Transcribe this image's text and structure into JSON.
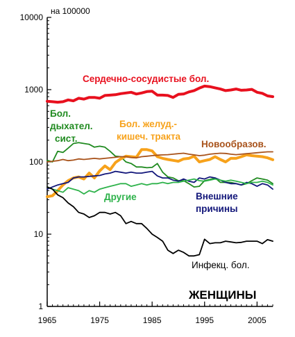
{
  "chart_data": {
    "type": "line",
    "title": "ЖЕНЩИНЫ",
    "ylabel": "на 100000",
    "xlabel": "",
    "y_scale": "log",
    "ylim": [
      1,
      10000
    ],
    "xlim": [
      1965,
      2008
    ],
    "x_ticks": [
      1965,
      1975,
      1985,
      1995,
      2005
    ],
    "y_ticks": [
      1,
      10,
      100,
      1000,
      10000
    ],
    "grid": false,
    "series": [
      {
        "name": "Сердечно-сосудистые бол.",
        "color": "#e8101e",
        "width": 4,
        "x": [
          1965,
          1966,
          1967,
          1968,
          1969,
          1970,
          1971,
          1972,
          1973,
          1974,
          1975,
          1976,
          1977,
          1978,
          1979,
          1980,
          1981,
          1982,
          1983,
          1984,
          1985,
          1986,
          1987,
          1988,
          1989,
          1990,
          1991,
          1992,
          1993,
          1994,
          1995,
          1996,
          1997,
          1998,
          1999,
          2000,
          2001,
          2002,
          2003,
          2004,
          2005,
          2006,
          2007,
          2008
        ],
        "values": [
          690,
          680,
          670,
          680,
          720,
          700,
          760,
          740,
          780,
          780,
          760,
          830,
          840,
          850,
          880,
          900,
          920,
          870,
          900,
          940,
          950,
          840,
          840,
          830,
          780,
          860,
          870,
          930,
          970,
          1050,
          1120,
          1100,
          1060,
          1020,
          970,
          990,
          1020,
          980,
          990,
          1010,
          920,
          890,
          820,
          800
        ]
      },
      {
        "name": "Бол. дыхател. сист.",
        "color": "#1f8a1f",
        "width": 1.8,
        "x": [
          1965,
          1966,
          1967,
          1968,
          1969,
          1970,
          1971,
          1972,
          1973,
          1974,
          1975,
          1976,
          1977,
          1978,
          1979,
          1980,
          1981,
          1982,
          1983,
          1984,
          1985,
          1986,
          1987,
          1988,
          1989,
          1990,
          1991,
          1992,
          1993,
          1994,
          1995,
          1996,
          1997,
          1998,
          1999,
          2000,
          2001,
          2002,
          2003,
          2004,
          2005,
          2006,
          2007,
          2008
        ],
        "values": [
          105,
          100,
          140,
          135,
          155,
          180,
          185,
          180,
          175,
          160,
          165,
          160,
          140,
          120,
          118,
          100,
          95,
          85,
          85,
          83,
          84,
          95,
          72,
          62,
          60,
          55,
          55,
          50,
          45,
          46,
          55,
          57,
          60,
          52,
          52,
          52,
          50,
          48,
          50,
          55,
          60,
          58,
          56,
          50
        ]
      },
      {
        "name": "Бол. желуд.-кишеч. тракта",
        "color": "#f7a21b",
        "width": 4,
        "x": [
          1965,
          1966,
          1967,
          1968,
          1969,
          1970,
          1971,
          1972,
          1973,
          1974,
          1975,
          1976,
          1977,
          1978,
          1979,
          1980,
          1981,
          1982,
          1983,
          1984,
          1985,
          1986,
          1987,
          1988,
          1989,
          1990,
          1991,
          1992,
          1993,
          1994,
          1995,
          1996,
          1997,
          1998,
          1999,
          2000,
          2001,
          2002,
          2003,
          2004,
          2005,
          2006,
          2007,
          2008
        ],
        "values": [
          33,
          34,
          40,
          48,
          55,
          60,
          62,
          58,
          70,
          60,
          75,
          88,
          78,
          98,
          110,
          120,
          118,
          116,
          148,
          148,
          142,
          118,
          112,
          108,
          105,
          102,
          110,
          112,
          120,
          100,
          104,
          108,
          118,
          108,
          100,
          112,
          112,
          118,
          125,
          122,
          120,
          118,
          114,
          107
        ]
      },
      {
        "name": "Новообразов.",
        "color": "#a8521a",
        "width": 1.8,
        "x": [
          1965,
          1966,
          1967,
          1968,
          1969,
          1970,
          1971,
          1972,
          1973,
          1974,
          1975,
          1976,
          1977,
          1978,
          1979,
          1980,
          1981,
          1982,
          1983,
          1984,
          1985,
          1986,
          1987,
          1988,
          1989,
          1990,
          1991,
          1992,
          1993,
          1994,
          1995,
          1996,
          1997,
          1998,
          1999,
          2000,
          2001,
          2002,
          2003,
          2004,
          2005,
          2006,
          2007,
          2008
        ],
        "values": [
          100,
          102,
          104,
          108,
          104,
          106,
          110,
          108,
          110,
          112,
          110,
          112,
          114,
          116,
          118,
          118,
          115,
          114,
          118,
          120,
          122,
          124,
          125,
          126,
          128,
          130,
          132,
          128,
          125,
          122,
          124,
          128,
          130,
          132,
          131,
          128,
          126,
          128,
          130,
          132,
          134,
          136,
          138,
          138
        ]
      },
      {
        "name": "Внешние причины",
        "color": "#12167a",
        "width": 1.8,
        "x": [
          1965,
          1966,
          1967,
          1968,
          1969,
          1970,
          1971,
          1972,
          1973,
          1974,
          1975,
          1976,
          1977,
          1978,
          1979,
          1980,
          1981,
          1982,
          1983,
          1984,
          1985,
          1986,
          1987,
          1988,
          1989,
          1990,
          1991,
          1992,
          1993,
          1994,
          1995,
          1996,
          1997,
          1998,
          1999,
          2000,
          2001,
          2002,
          2003,
          2004,
          2005,
          2006,
          2007,
          2008
        ],
        "values": [
          42,
          45,
          48,
          50,
          52,
          60,
          62,
          62,
          63,
          64,
          65,
          68,
          70,
          74,
          72,
          70,
          72,
          70,
          70,
          72,
          74,
          64,
          60,
          60,
          56,
          54,
          58,
          54,
          52,
          60,
          58,
          62,
          60,
          56,
          52,
          50,
          50,
          48,
          52,
          50,
          46,
          50,
          48,
          42
        ]
      },
      {
        "name": "Другие",
        "color": "#2db24a",
        "width": 1.8,
        "x": [
          1965,
          1966,
          1967,
          1968,
          1969,
          1970,
          1971,
          1972,
          1973,
          1974,
          1975,
          1976,
          1977,
          1978,
          1979,
          1980,
          1981,
          1982,
          1983,
          1984,
          1985,
          1986,
          1987,
          1988,
          1989,
          1990,
          1991,
          1992,
          1993,
          1994,
          1995,
          1996,
          1997,
          1998,
          1999,
          2000,
          2001,
          2002,
          2003,
          2004,
          2005,
          2006,
          2007,
          2008
        ],
        "values": [
          45,
          42,
          40,
          38,
          44,
          42,
          40,
          36,
          40,
          38,
          42,
          44,
          46,
          48,
          50,
          50,
          46,
          48,
          50,
          48,
          50,
          50,
          52,
          50,
          52,
          52,
          54,
          56,
          58,
          55,
          54,
          56,
          58,
          56,
          54,
          56,
          54,
          52,
          50,
          52,
          52,
          54,
          52,
          48
        ]
      },
      {
        "name": "Инфекц. бол.",
        "color": "#000000",
        "width": 1.8,
        "x": [
          1965,
          1966,
          1967,
          1968,
          1969,
          1970,
          1971,
          1972,
          1973,
          1974,
          1975,
          1976,
          1977,
          1978,
          1979,
          1980,
          1981,
          1982,
          1983,
          1984,
          1985,
          1986,
          1987,
          1988,
          1989,
          1990,
          1991,
          1992,
          1993,
          1994,
          1995,
          1996,
          1997,
          1998,
          1999,
          2000,
          2001,
          2002,
          2003,
          2004,
          2005,
          2006,
          2007,
          2008
        ],
        "values": [
          45,
          42,
          35,
          32,
          27,
          24,
          20,
          19,
          17,
          18,
          20,
          20,
          19,
          20,
          18,
          14,
          15,
          14,
          14,
          12,
          10,
          9,
          8,
          6,
          5.4,
          6,
          5.6,
          5,
          5,
          5.2,
          8.5,
          7.4,
          7.6,
          7.6,
          8,
          7.8,
          7.6,
          7.7,
          8,
          8,
          8,
          7.4,
          8.4,
          8
        ]
      }
    ]
  },
  "labels": {
    "cardio": "Сердечно-сосудистые бол.",
    "resp_line1": "Бол.",
    "resp_line2": "дыхател.",
    "resp_line3": "сист.",
    "gi_line1": "Бол. желуд.-",
    "gi_line2": "кишеч. тракта",
    "neoplasm": "Новообразов.",
    "external_line1": "Внешние",
    "external_line2": "причины",
    "other": "Другие",
    "infect": "Инфекц. бол."
  }
}
